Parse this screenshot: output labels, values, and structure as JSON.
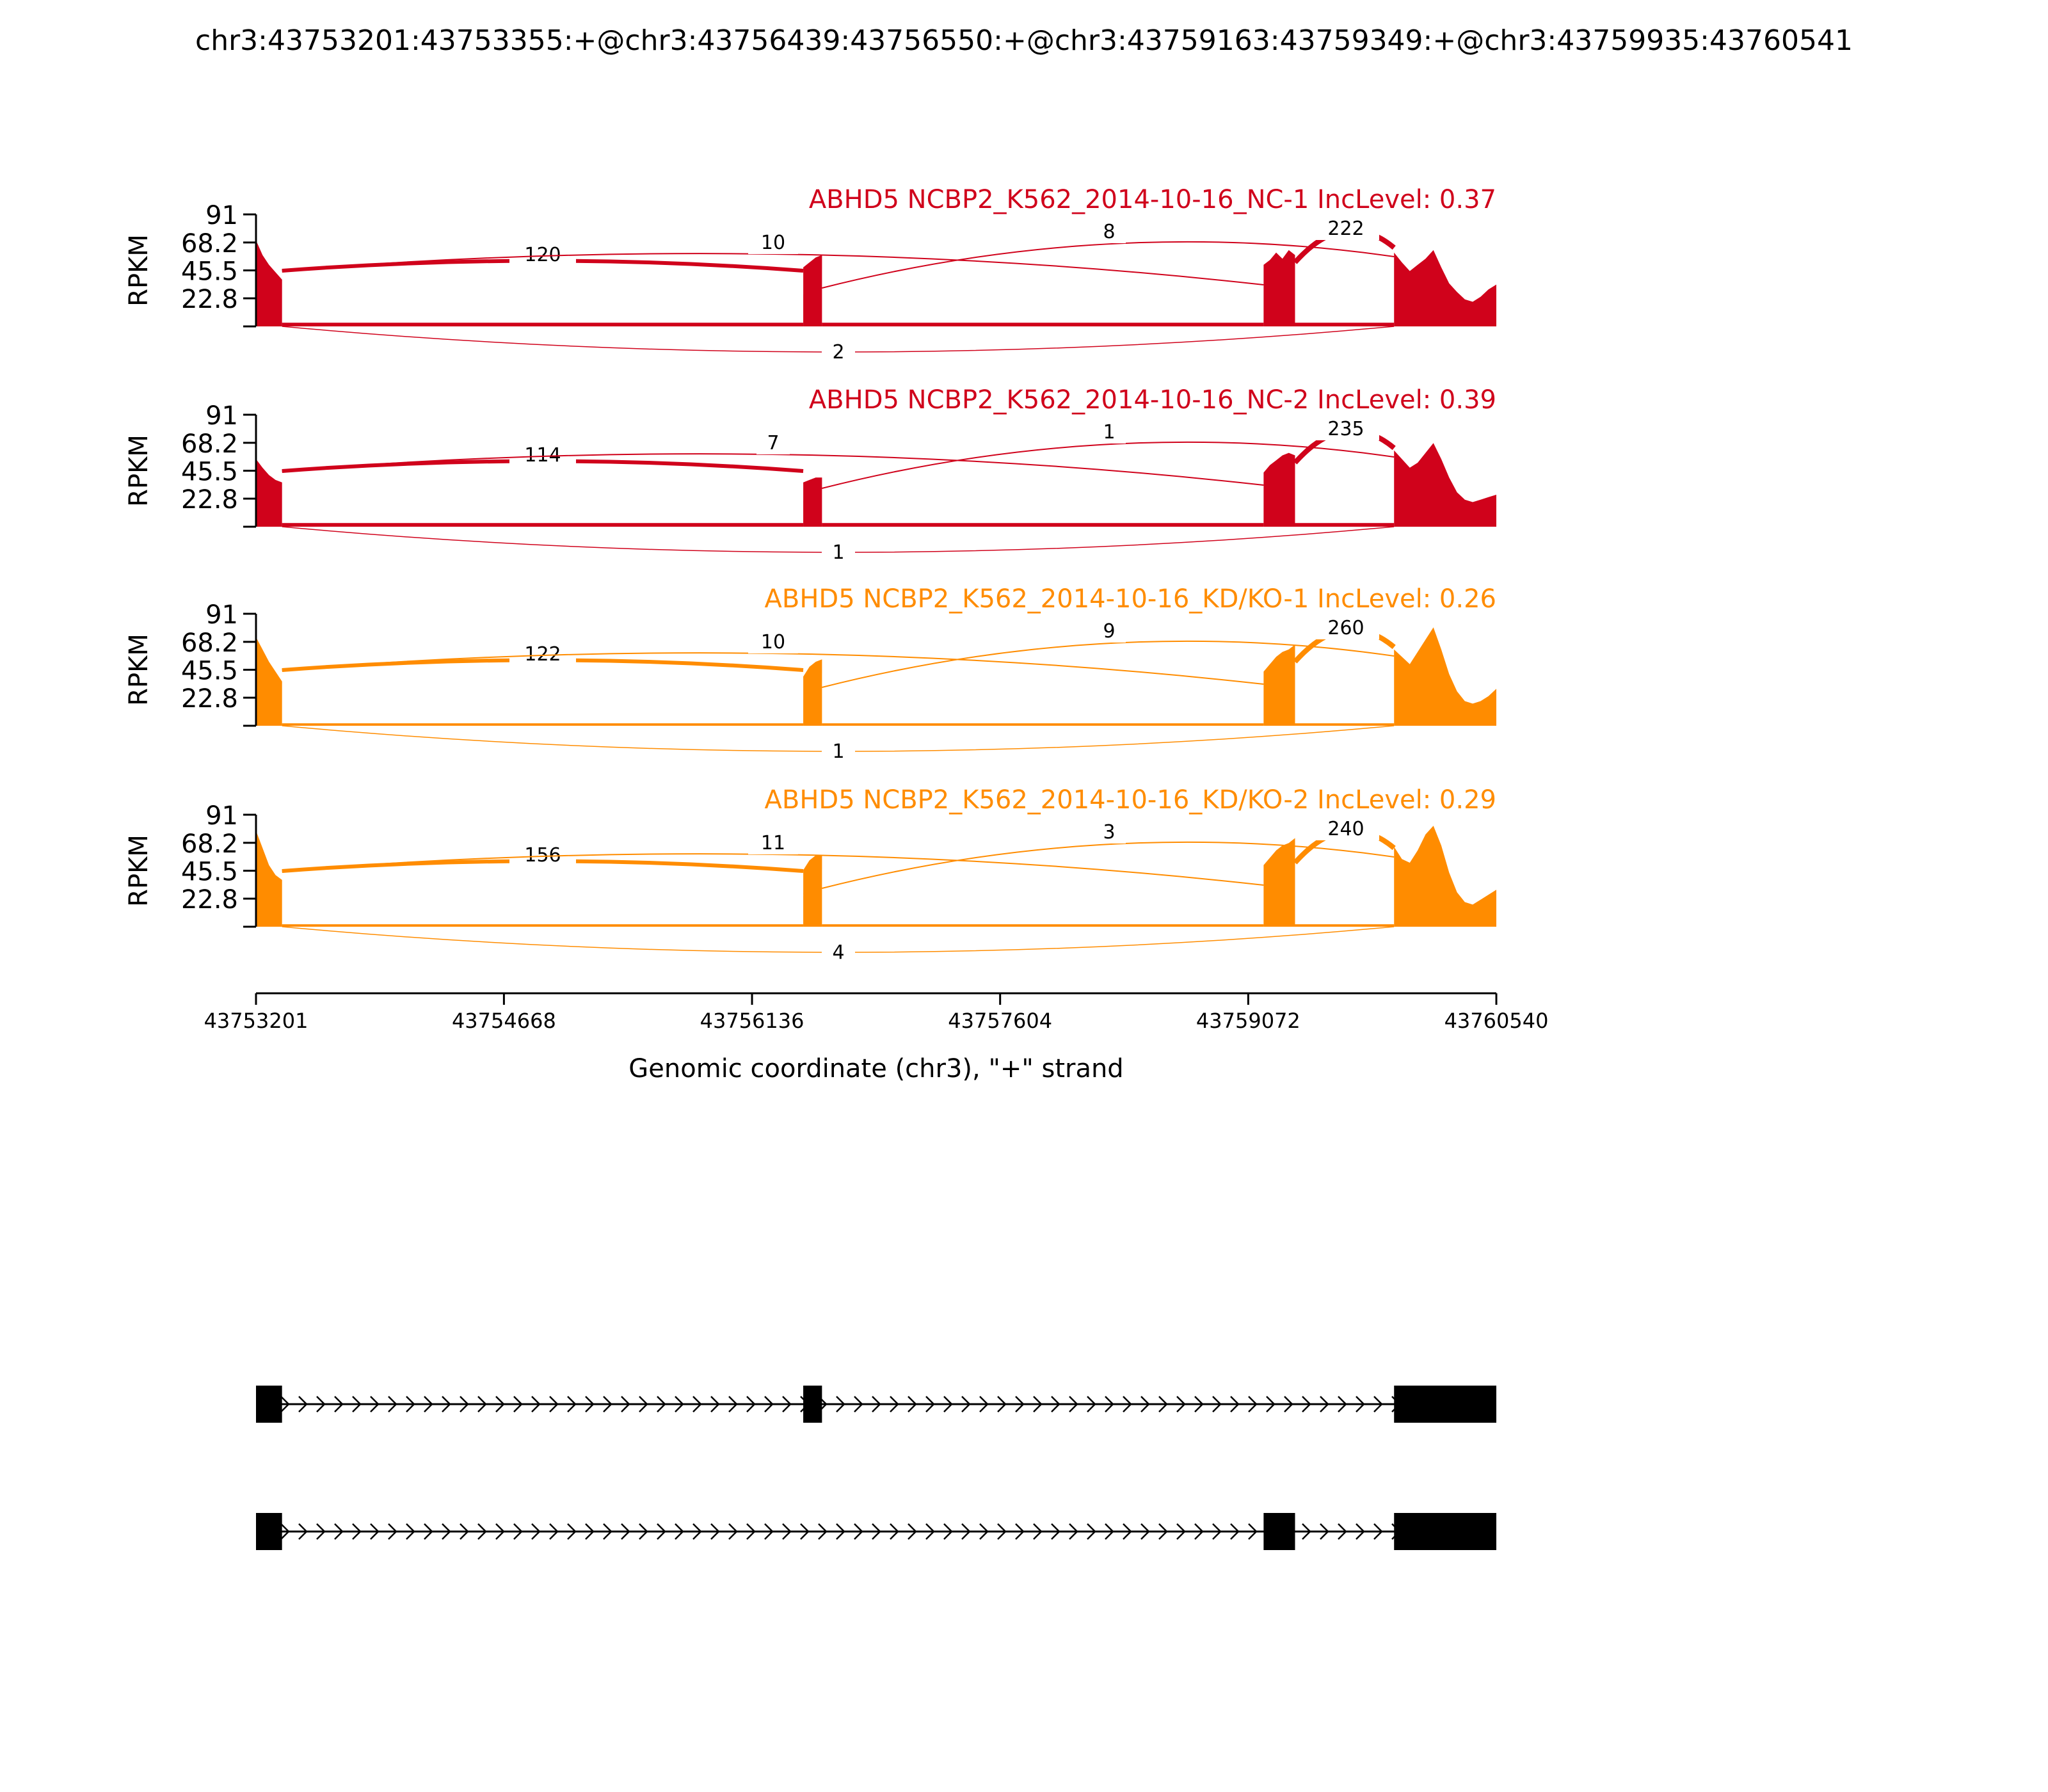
{
  "title": "chr3:43753201:43753355:+@chr3:43756439:43756550:+@chr3:43759163:43759349:+@chr3:43759935:43760541",
  "colors": {
    "nc": "#d0021b",
    "kd": "#ff8c00",
    "gene": "#000000"
  },
  "chart_data": {
    "type": "sashimi",
    "ylabel": "RPKM",
    "yticks": [
      22.8,
      45.5,
      68.2,
      91
    ],
    "ylim": [
      0,
      91
    ],
    "xlim": [
      43753201,
      43760540
    ],
    "xticks": [
      43753201,
      43754668,
      43756136,
      43757604,
      43759072,
      43760540
    ],
    "xlabel": "Genomic coordinate (chr3), \"+\" strand",
    "exons": [
      {
        "start": 43753201,
        "end": 43753355
      },
      {
        "start": 43756439,
        "end": 43756550
      },
      {
        "start": 43759163,
        "end": 43759349
      },
      {
        "start": 43759935,
        "end": 43760541
      }
    ],
    "tracks": [
      {
        "label": "ABHD5 NCBP2_K562_2014-10-16_NC-1 IncLevel: 0.37",
        "color_key": "nc",
        "coverage": {
          "exon1": [
            70,
            58,
            50,
            44,
            38
          ],
          "exon2": [
            48,
            52,
            56,
            58
          ],
          "exon3": [
            50,
            54,
            60,
            55,
            62,
            58
          ],
          "exon4": [
            60,
            52,
            45,
            50,
            55,
            62,
            48,
            35,
            28,
            22,
            20,
            24,
            30,
            34
          ],
          "intron": 3
        },
        "junctions": [
          {
            "from": 43753355,
            "to": 43756439,
            "count": 120,
            "side": "top"
          },
          {
            "from": 43753355,
            "to": 43759163,
            "count": 10,
            "side": "top"
          },
          {
            "from": 43756550,
            "to": 43759935,
            "count": 8,
            "side": "top"
          },
          {
            "from": 43759349,
            "to": 43759935,
            "count": 222,
            "side": "top"
          },
          {
            "from": 43753355,
            "to": 43759935,
            "count": 2,
            "side": "bottom"
          }
        ]
      },
      {
        "label": "ABHD5 NCBP2_K562_2014-10-16_NC-2 IncLevel: 0.39",
        "color_key": "nc",
        "coverage": {
          "exon1": [
            55,
            48,
            42,
            38,
            36
          ],
          "exon2": [
            36,
            38,
            40,
            40
          ],
          "exon3": [
            44,
            50,
            54,
            58,
            60,
            58
          ],
          "exon4": [
            62,
            55,
            48,
            52,
            60,
            68,
            55,
            40,
            28,
            22,
            20,
            22,
            24,
            26
          ],
          "intron": 3
        },
        "junctions": [
          {
            "from": 43753355,
            "to": 43756439,
            "count": 114,
            "side": "top"
          },
          {
            "from": 43753355,
            "to": 43759163,
            "count": 7,
            "side": "top"
          },
          {
            "from": 43756550,
            "to": 43759935,
            "count": 1,
            "side": "top"
          },
          {
            "from": 43759349,
            "to": 43759935,
            "count": 235,
            "side": "top"
          },
          {
            "from": 43753355,
            "to": 43759935,
            "count": 1,
            "side": "bottom"
          }
        ]
      },
      {
        "label": "ABHD5 NCBP2_K562_2014-10-16_KD/KO-1 IncLevel: 0.26",
        "color_key": "kd",
        "coverage": {
          "exon1": [
            72,
            62,
            52,
            44,
            36
          ],
          "exon2": [
            40,
            48,
            52,
            54
          ],
          "exon3": [
            44,
            50,
            56,
            60,
            62,
            66
          ],
          "exon4": [
            62,
            56,
            50,
            60,
            70,
            80,
            62,
            42,
            28,
            20,
            18,
            20,
            24,
            30
          ],
          "intron": 2
        },
        "junctions": [
          {
            "from": 43753355,
            "to": 43756439,
            "count": 122,
            "side": "top"
          },
          {
            "from": 43753355,
            "to": 43759163,
            "count": 10,
            "side": "top"
          },
          {
            "from": 43756550,
            "to": 43759935,
            "count": 9,
            "side": "top"
          },
          {
            "from": 43759349,
            "to": 43759935,
            "count": 260,
            "side": "top"
          },
          {
            "from": 43753355,
            "to": 43759935,
            "count": 1,
            "side": "bottom"
          }
        ]
      },
      {
        "label": "ABHD5 NCBP2_K562_2014-10-16_KD/KO-2 IncLevel: 0.29",
        "color_key": "kd",
        "coverage": {
          "exon1": [
            78,
            64,
            50,
            42,
            38
          ],
          "exon2": [
            46,
            54,
            58,
            58
          ],
          "exon3": [
            50,
            56,
            62,
            66,
            68,
            72
          ],
          "exon4": [
            65,
            55,
            52,
            62,
            75,
            82,
            66,
            44,
            28,
            20,
            18,
            22,
            26,
            30
          ],
          "intron": 2
        },
        "junctions": [
          {
            "from": 43753355,
            "to": 43756439,
            "count": 156,
            "side": "top"
          },
          {
            "from": 43753355,
            "to": 43759163,
            "count": 11,
            "side": "top"
          },
          {
            "from": 43756550,
            "to": 43759935,
            "count": 3,
            "side": "top"
          },
          {
            "from": 43759349,
            "to": 43759935,
            "count": 240,
            "side": "top"
          },
          {
            "from": 43753355,
            "to": 43759935,
            "count": 4,
            "side": "bottom"
          }
        ]
      }
    ],
    "isoforms": [
      {
        "exons": [
          [
            43753201,
            43753355
          ],
          [
            43756439,
            43756550
          ],
          [
            43759935,
            43760541
          ]
        ]
      },
      {
        "exons": [
          [
            43753201,
            43753355
          ],
          [
            43759163,
            43759349
          ],
          [
            43759935,
            43760541
          ]
        ]
      }
    ]
  }
}
